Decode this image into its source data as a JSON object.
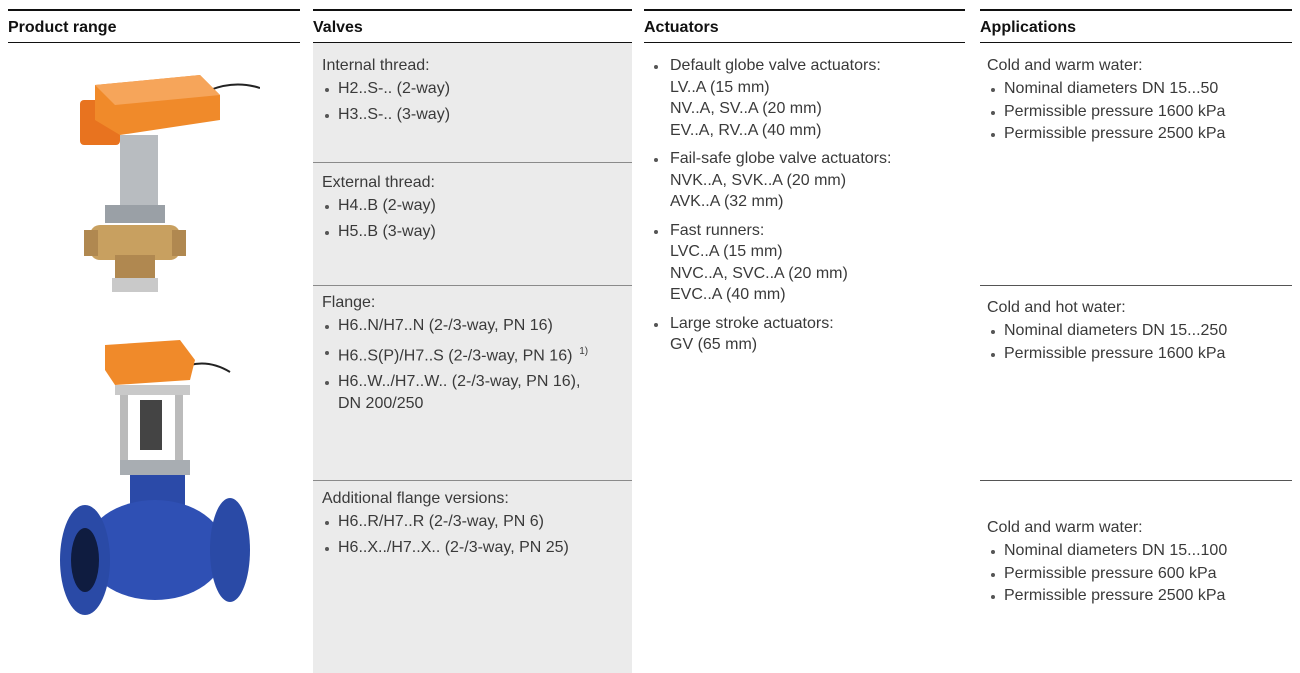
{
  "header": {
    "columns": [
      "Product range",
      "Valves",
      "Actuators",
      "Applications"
    ]
  },
  "valves": {
    "sections": [
      {
        "title": "Internal thread:",
        "items": [
          "H2..S-.. (2-way)",
          "H3..S-.. (3-way)"
        ]
      },
      {
        "title": "External thread:",
        "items": [
          "H4..B (2-way)",
          "H5..B (3-way)"
        ]
      },
      {
        "title": "Flange:",
        "items": [
          "H6..N/H7..N (2-/3-way, PN 16)",
          {
            "text": "H6..S(P)/H7..S (2-/3-way, PN 16)",
            "note": "1)"
          },
          "H6..W../H7..W.. (2-/3-way, PN 16), DN 200/250"
        ]
      },
      {
        "title": "Additional flange versions:",
        "items": [
          "H6..R/H7..R (2-/3-way, PN 6)",
          "H6..X../H7..X.. (2-/3-way, PN 25)"
        ]
      }
    ]
  },
  "actuators": {
    "items": [
      {
        "title": "Default globe valve actuators:",
        "lines": [
          "LV..A (15 mm)",
          "NV..A, SV..A (20 mm)",
          "EV..A, RV..A (40 mm)"
        ]
      },
      {
        "title": "Fail-safe globe valve actuators:",
        "lines": [
          "NVK..A, SVK..A (20 mm)",
          "AVK..A (32 mm)"
        ]
      },
      {
        "title": "Fast runners:",
        "lines": [
          "LVC..A (15 mm)",
          "NVC..A, SVC..A (20 mm)",
          "EVC..A (40 mm)"
        ]
      },
      {
        "title": "Large stroke actuators:",
        "lines": [
          "GV (65 mm)"
        ]
      }
    ]
  },
  "applications": {
    "sections": [
      {
        "title": "Cold and warm water:",
        "items": [
          "Nominal diameters DN 15...50",
          "Permissible pressure 1600 kPa",
          "Permissible pressure 2500 kPa"
        ]
      },
      {
        "title": "Cold and hot water:",
        "items": [
          "Nominal diameters DN 15...250",
          "Permissible pressure 1600 kPa"
        ]
      },
      {
        "title": "Cold and warm water:",
        "items": [
          "Nominal diameters DN 15...100",
          "Permissible pressure 600 kPa",
          "Permissible pressure 2500 kPa"
        ]
      }
    ]
  }
}
